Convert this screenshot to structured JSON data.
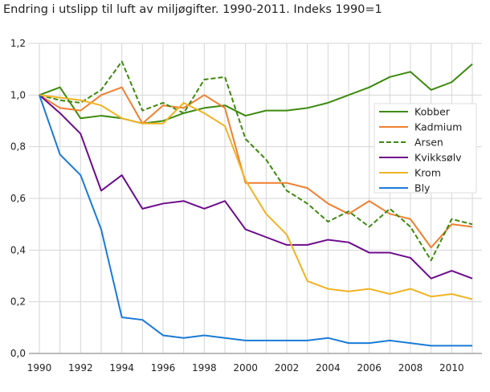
{
  "chart_data": {
    "type": "line",
    "title": "Endring i utslipp til luft av miljøgifter. 1990-2011. Indeks 1990=1",
    "x": [
      1990,
      1991,
      1992,
      1993,
      1994,
      1995,
      1996,
      1997,
      1998,
      1999,
      2000,
      2001,
      2002,
      2003,
      2004,
      2005,
      2006,
      2007,
      2008,
      2009,
      2010,
      2011
    ],
    "xlim": [
      1990,
      2011
    ],
    "ylim": [
      0,
      1.2
    ],
    "xticks": [
      "1990",
      "1992",
      "1994",
      "1996",
      "1998",
      "2000",
      "2002",
      "2004",
      "2006",
      "2008",
      "2010"
    ],
    "yticks": [
      "0,0",
      "0,2",
      "0,4",
      "0,6",
      "0,8",
      "1,0",
      "1,2"
    ],
    "grid": true,
    "legend_position": "right",
    "series": [
      {
        "name": "Kobber",
        "color": "#3d8a0e",
        "dash": false,
        "values": [
          1,
          1.03,
          0.91,
          0.92,
          0.91,
          0.89,
          0.9,
          0.93,
          0.95,
          0.96,
          0.92,
          0.94,
          0.94,
          0.95,
          0.97,
          1.0,
          1.03,
          1.07,
          1.09,
          1.02,
          1.05,
          1.12
        ]
      },
      {
        "name": "Kadmium",
        "color": "#f07f30",
        "dash": false,
        "values": [
          1,
          0.95,
          0.94,
          1.0,
          1.03,
          0.89,
          0.96,
          0.95,
          1.0,
          0.95,
          0.66,
          0.66,
          0.66,
          0.64,
          0.58,
          0.54,
          0.59,
          0.54,
          0.52,
          0.41,
          0.5,
          0.49
        ]
      },
      {
        "name": "Arsen",
        "color": "#3d8a0e",
        "dash": true,
        "values": [
          1,
          0.98,
          0.97,
          1.02,
          1.13,
          0.94,
          0.97,
          0.93,
          1.06,
          1.07,
          0.83,
          0.75,
          0.63,
          0.58,
          0.51,
          0.55,
          0.49,
          0.56,
          0.49,
          0.36,
          0.52,
          0.5
        ]
      },
      {
        "name": "Kvikksølv",
        "color": "#6d0c8c",
        "dash": false,
        "values": [
          1,
          0.93,
          0.85,
          0.63,
          0.69,
          0.56,
          0.58,
          0.59,
          0.56,
          0.59,
          0.48,
          0.45,
          0.42,
          0.42,
          0.44,
          0.43,
          0.39,
          0.39,
          0.37,
          0.29,
          0.32,
          0.29
        ]
      },
      {
        "name": "Krom",
        "color": "#f0b323",
        "dash": false,
        "values": [
          1,
          0.99,
          0.98,
          0.96,
          0.91,
          0.89,
          0.89,
          0.97,
          0.93,
          0.88,
          0.67,
          0.54,
          0.46,
          0.28,
          0.25,
          0.24,
          0.25,
          0.23,
          0.25,
          0.22,
          0.23,
          0.21
        ]
      },
      {
        "name": "Bly",
        "color": "#1a7bd8",
        "dash": false,
        "values": [
          1,
          0.77,
          0.69,
          0.48,
          0.14,
          0.13,
          0.07,
          0.06,
          0.07,
          0.06,
          0.05,
          0.05,
          0.05,
          0.05,
          0.06,
          0.04,
          0.04,
          0.05,
          0.04,
          0.03,
          0.03,
          0.03
        ]
      }
    ]
  }
}
